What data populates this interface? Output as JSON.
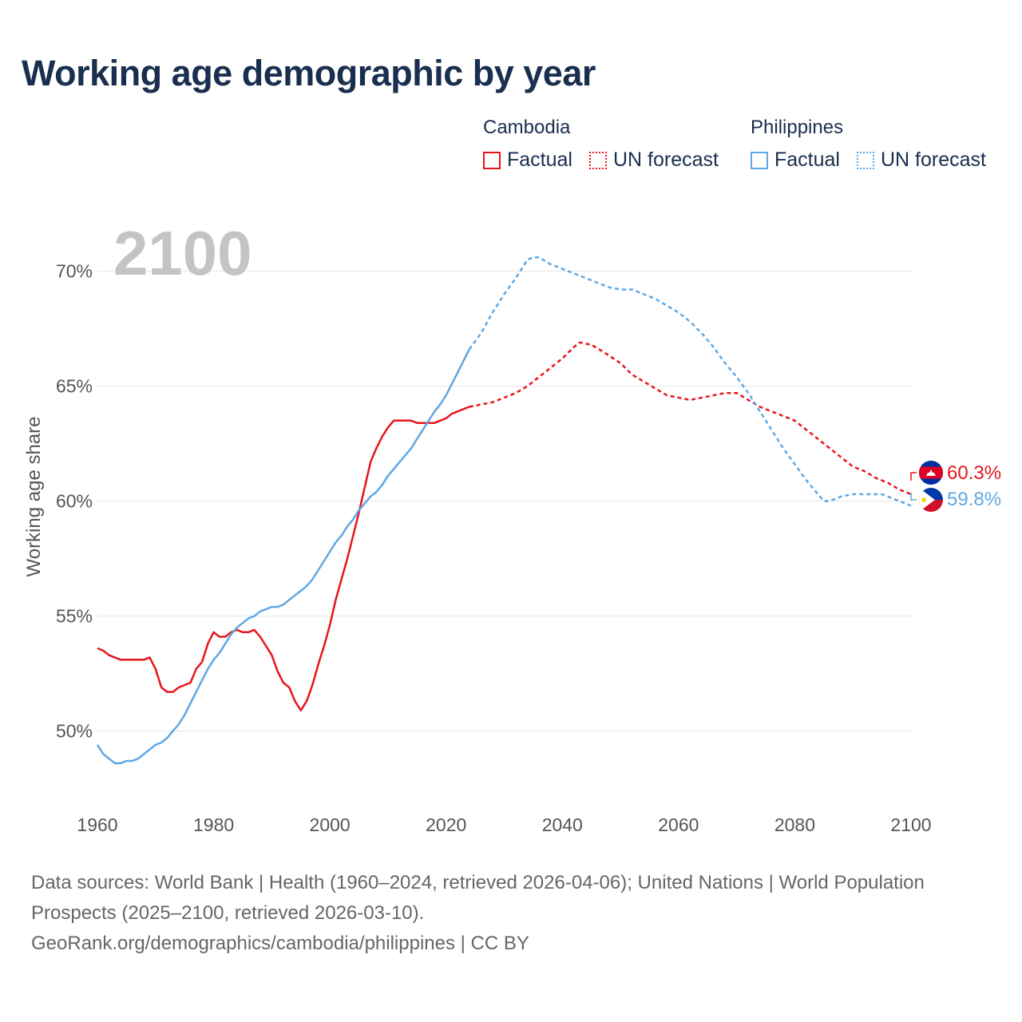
{
  "title": "Working age demographic by year",
  "legend": {
    "groups": [
      {
        "name": "Cambodia",
        "color": "#e8141c",
        "factual": "Factual",
        "forecast": "UN forecast"
      },
      {
        "name": "Philippines",
        "color": "#5ea8e6",
        "factual": "Factual",
        "forecast": "UN forecast"
      }
    ]
  },
  "footer": {
    "sources": "Data sources: World Bank | Health (1960–2024, retrieved 2026-04-06); United Nations | World Population Prospects (2025–2100, retrieved 2026-03-10).",
    "url": "GeoRank.org/demographics/cambodia/philippines | CC BY"
  },
  "chart_data": {
    "type": "line",
    "title": "Working age demographic by year",
    "xlabel": "",
    "ylabel": "Working age share",
    "year_marker": "2100",
    "xlim": [
      1960,
      2100
    ],
    "ylim": [
      47,
      72
    ],
    "x_ticks": [
      1960,
      1980,
      2000,
      2020,
      2040,
      2060,
      2080,
      2100
    ],
    "x_tick_labels": [
      "1960",
      "1980",
      "2000",
      "2020",
      "2040",
      "2060",
      "2080",
      "2100"
    ],
    "y_ticks": [
      50,
      55,
      60,
      65,
      70
    ],
    "y_tick_labels": [
      "50%",
      "55%",
      "60%",
      "65%",
      "70%"
    ],
    "grid": true,
    "factual_end_year": 2024,
    "series": [
      {
        "name": "Cambodia",
        "color": "#e8141c",
        "flag": "cambodia-flag",
        "end_label": "60.3%",
        "end_value": 60.3,
        "points": [
          [
            1960,
            53.6
          ],
          [
            1961,
            53.5
          ],
          [
            1962,
            53.3
          ],
          [
            1963,
            53.2
          ],
          [
            1964,
            53.1
          ],
          [
            1965,
            53.1
          ],
          [
            1966,
            53.1
          ],
          [
            1967,
            53.1
          ],
          [
            1968,
            53.1
          ],
          [
            1969,
            53.2
          ],
          [
            1970,
            52.7
          ],
          [
            1971,
            51.9
          ],
          [
            1972,
            51.7
          ],
          [
            1973,
            51.7
          ],
          [
            1974,
            51.9
          ],
          [
            1975,
            52.0
          ],
          [
            1976,
            52.1
          ],
          [
            1977,
            52.7
          ],
          [
            1978,
            53.0
          ],
          [
            1979,
            53.8
          ],
          [
            1980,
            54.3
          ],
          [
            1981,
            54.1
          ],
          [
            1982,
            54.1
          ],
          [
            1983,
            54.3
          ],
          [
            1984,
            54.4
          ],
          [
            1985,
            54.3
          ],
          [
            1986,
            54.3
          ],
          [
            1987,
            54.4
          ],
          [
            1988,
            54.1
          ],
          [
            1989,
            53.7
          ],
          [
            1990,
            53.3
          ],
          [
            1991,
            52.6
          ],
          [
            1992,
            52.1
          ],
          [
            1993,
            51.9
          ],
          [
            1994,
            51.3
          ],
          [
            1995,
            50.9
          ],
          [
            1996,
            51.3
          ],
          [
            1997,
            52.0
          ],
          [
            1998,
            52.9
          ],
          [
            1999,
            53.7
          ],
          [
            2000,
            54.6
          ],
          [
            2001,
            55.7
          ],
          [
            2002,
            56.6
          ],
          [
            2003,
            57.5
          ],
          [
            2004,
            58.5
          ],
          [
            2005,
            59.5
          ],
          [
            2006,
            60.6
          ],
          [
            2007,
            61.7
          ],
          [
            2008,
            62.3
          ],
          [
            2009,
            62.8
          ],
          [
            2010,
            63.2
          ],
          [
            2011,
            63.5
          ],
          [
            2012,
            63.5
          ],
          [
            2013,
            63.5
          ],
          [
            2014,
            63.5
          ],
          [
            2015,
            63.4
          ],
          [
            2016,
            63.4
          ],
          [
            2017,
            63.4
          ],
          [
            2018,
            63.4
          ],
          [
            2019,
            63.5
          ],
          [
            2020,
            63.6
          ],
          [
            2021,
            63.8
          ],
          [
            2022,
            63.9
          ],
          [
            2023,
            64.0
          ],
          [
            2024,
            64.1
          ],
          [
            2026,
            64.2
          ],
          [
            2028,
            64.3
          ],
          [
            2030,
            64.5
          ],
          [
            2032,
            64.7
          ],
          [
            2034,
            65.0
          ],
          [
            2036,
            65.4
          ],
          [
            2038,
            65.8
          ],
          [
            2040,
            66.2
          ],
          [
            2042,
            66.7
          ],
          [
            2043,
            66.9
          ],
          [
            2045,
            66.8
          ],
          [
            2047,
            66.5
          ],
          [
            2050,
            66.0
          ],
          [
            2052,
            65.5
          ],
          [
            2054,
            65.2
          ],
          [
            2056,
            64.9
          ],
          [
            2058,
            64.6
          ],
          [
            2060,
            64.5
          ],
          [
            2062,
            64.4
          ],
          [
            2064,
            64.5
          ],
          [
            2066,
            64.6
          ],
          [
            2068,
            64.7
          ],
          [
            2070,
            64.7
          ],
          [
            2072,
            64.4
          ],
          [
            2074,
            64.1
          ],
          [
            2076,
            63.9
          ],
          [
            2078,
            63.7
          ],
          [
            2080,
            63.5
          ],
          [
            2082,
            63.1
          ],
          [
            2084,
            62.7
          ],
          [
            2086,
            62.3
          ],
          [
            2088,
            61.9
          ],
          [
            2090,
            61.5
          ],
          [
            2092,
            61.3
          ],
          [
            2094,
            61.0
          ],
          [
            2096,
            60.8
          ],
          [
            2098,
            60.5
          ],
          [
            2100,
            60.3
          ]
        ]
      },
      {
        "name": "Philippines",
        "color": "#5ea8e6",
        "flag": "philippines-flag",
        "end_label": "59.8%",
        "end_value": 59.8,
        "points": [
          [
            1960,
            49.4
          ],
          [
            1961,
            49.0
          ],
          [
            1962,
            48.8
          ],
          [
            1963,
            48.6
          ],
          [
            1964,
            48.6
          ],
          [
            1965,
            48.7
          ],
          [
            1966,
            48.7
          ],
          [
            1967,
            48.8
          ],
          [
            1968,
            49.0
          ],
          [
            1969,
            49.2
          ],
          [
            1970,
            49.4
          ],
          [
            1971,
            49.5
          ],
          [
            1972,
            49.7
          ],
          [
            1973,
            50.0
          ],
          [
            1974,
            50.3
          ],
          [
            1975,
            50.7
          ],
          [
            1976,
            51.2
          ],
          [
            1977,
            51.7
          ],
          [
            1978,
            52.2
          ],
          [
            1979,
            52.7
          ],
          [
            1980,
            53.1
          ],
          [
            1981,
            53.4
          ],
          [
            1982,
            53.8
          ],
          [
            1983,
            54.2
          ],
          [
            1984,
            54.5
          ],
          [
            1985,
            54.7
          ],
          [
            1986,
            54.9
          ],
          [
            1987,
            55.0
          ],
          [
            1988,
            55.2
          ],
          [
            1989,
            55.3
          ],
          [
            1990,
            55.4
          ],
          [
            1991,
            55.4
          ],
          [
            1992,
            55.5
          ],
          [
            1993,
            55.7
          ],
          [
            1994,
            55.9
          ],
          [
            1995,
            56.1
          ],
          [
            1996,
            56.3
          ],
          [
            1997,
            56.6
          ],
          [
            1998,
            57.0
          ],
          [
            1999,
            57.4
          ],
          [
            2000,
            57.8
          ],
          [
            2001,
            58.2
          ],
          [
            2002,
            58.5
          ],
          [
            2003,
            58.9
          ],
          [
            2004,
            59.2
          ],
          [
            2005,
            59.6
          ],
          [
            2006,
            59.9
          ],
          [
            2007,
            60.2
          ],
          [
            2008,
            60.4
          ],
          [
            2009,
            60.7
          ],
          [
            2010,
            61.1
          ],
          [
            2011,
            61.4
          ],
          [
            2012,
            61.7
          ],
          [
            2013,
            62.0
          ],
          [
            2014,
            62.3
          ],
          [
            2015,
            62.7
          ],
          [
            2016,
            63.1
          ],
          [
            2017,
            63.5
          ],
          [
            2018,
            63.9
          ],
          [
            2019,
            64.2
          ],
          [
            2020,
            64.6
          ],
          [
            2021,
            65.1
          ],
          [
            2022,
            65.6
          ],
          [
            2023,
            66.1
          ],
          [
            2024,
            66.6
          ],
          [
            2026,
            67.3
          ],
          [
            2028,
            68.2
          ],
          [
            2030,
            69.0
          ],
          [
            2032,
            69.7
          ],
          [
            2034,
            70.5
          ],
          [
            2035,
            70.6
          ],
          [
            2036,
            70.6
          ],
          [
            2038,
            70.3
          ],
          [
            2040,
            70.1
          ],
          [
            2042,
            69.9
          ],
          [
            2044,
            69.7
          ],
          [
            2046,
            69.5
          ],
          [
            2048,
            69.3
          ],
          [
            2050,
            69.2
          ],
          [
            2052,
            69.2
          ],
          [
            2054,
            69.0
          ],
          [
            2056,
            68.8
          ],
          [
            2058,
            68.5
          ],
          [
            2060,
            68.2
          ],
          [
            2062,
            67.8
          ],
          [
            2064,
            67.3
          ],
          [
            2066,
            66.7
          ],
          [
            2068,
            66.0
          ],
          [
            2070,
            65.4
          ],
          [
            2072,
            64.7
          ],
          [
            2074,
            63.9
          ],
          [
            2076,
            63.1
          ],
          [
            2078,
            62.3
          ],
          [
            2080,
            61.6
          ],
          [
            2082,
            60.9
          ],
          [
            2084,
            60.3
          ],
          [
            2085,
            60.0
          ],
          [
            2086,
            60.0
          ],
          [
            2088,
            60.2
          ],
          [
            2090,
            60.3
          ],
          [
            2092,
            60.3
          ],
          [
            2094,
            60.3
          ],
          [
            2095,
            60.3
          ],
          [
            2096,
            60.2
          ],
          [
            2098,
            60.0
          ],
          [
            2100,
            59.8
          ]
        ]
      }
    ]
  }
}
